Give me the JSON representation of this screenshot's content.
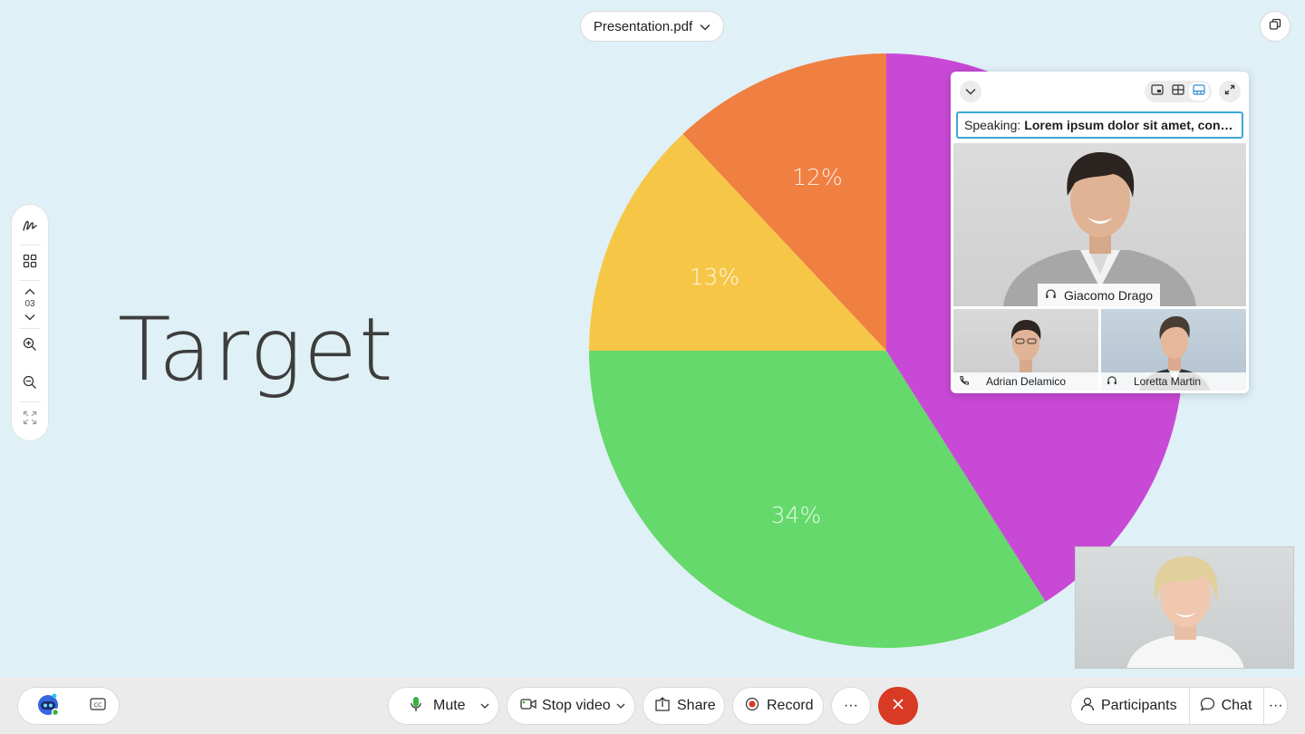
{
  "header": {
    "file_name": "Presentation.pdf"
  },
  "slide": {
    "title": "Target",
    "page_number": "03"
  },
  "chart_data": {
    "type": "pie",
    "slices": [
      {
        "label": "12%",
        "value": 12,
        "color": "#f07f42"
      },
      {
        "label": "13%",
        "value": 13,
        "color": "#f6c647"
      },
      {
        "label": "34%",
        "value": 34,
        "color": "#65d96b"
      },
      {
        "label": "",
        "value": 41,
        "color": "#c849d6"
      }
    ]
  },
  "tool_rail": {
    "icons": [
      "annotate-icon",
      "grid-icon",
      "chevron-up-icon",
      "chevron-down-icon",
      "zoom-in-icon",
      "zoom-out-icon",
      "fit-screen-icon"
    ]
  },
  "video_panel": {
    "speaking_label": "Speaking:",
    "speaking_text": "Lorem ipsum dolor sit amet, consec...",
    "main_participant": "Giacomo Drago",
    "participants": [
      "Adrian Delamico",
      "Loretta Martin"
    ]
  },
  "controls": {
    "mute": "Mute",
    "stop_video": "Stop video",
    "share": "Share",
    "record": "Record",
    "more": "···",
    "participants": "Participants",
    "chat": "Chat"
  },
  "colors": {
    "stage_bg": "#dff0f6",
    "end_call": "#d93a24",
    "speaking_border": "#3fa9d6",
    "record_dot": "#d93a24",
    "mic_green": "#3cb043"
  }
}
